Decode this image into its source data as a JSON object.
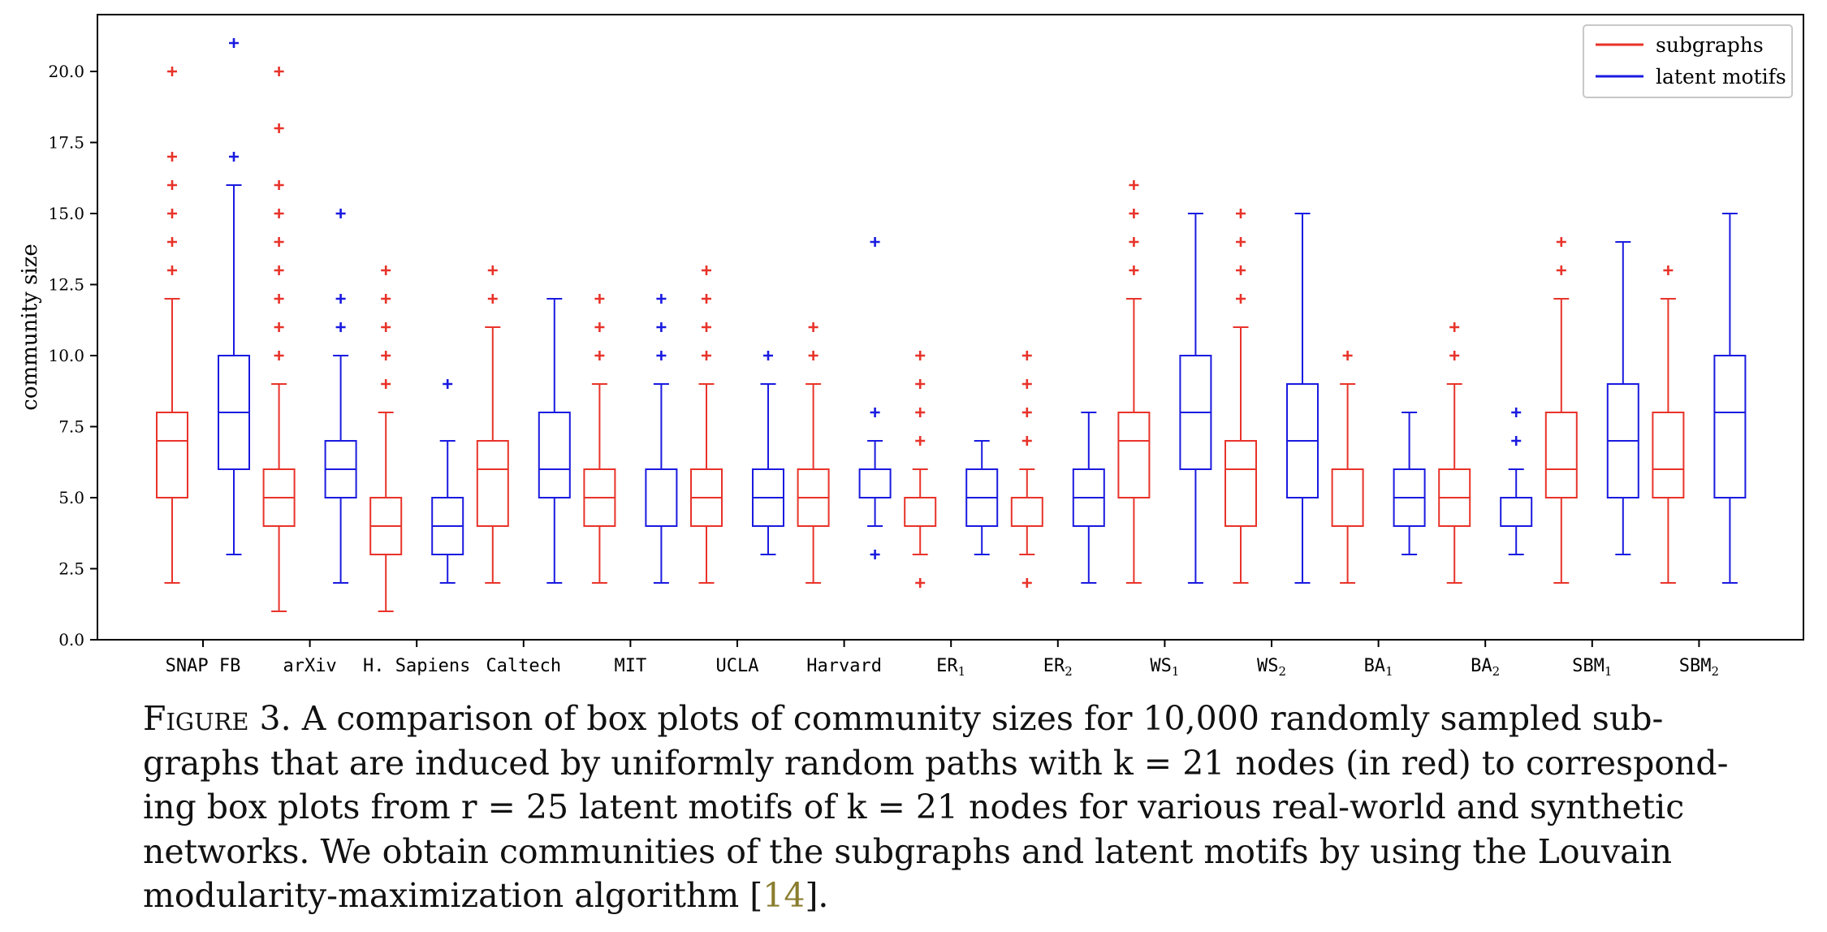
{
  "chart_data": {
    "type": "boxplot",
    "ylabel": "community size",
    "ylim": [
      0.0,
      22.0
    ],
    "yticks": [
      "0.0",
      "2.5",
      "5.0",
      "7.5",
      "10.0",
      "12.5",
      "15.0",
      "17.5",
      "20.0"
    ],
    "categories": [
      "SNAP FB",
      "arXiv",
      "H. Sapiens",
      "Caltech",
      "MIT",
      "UCLA",
      "Harvard",
      "ER",
      "ER",
      "WS",
      "WS",
      "BA",
      "BA",
      "SBM",
      "SBM"
    ],
    "category_subscripts": [
      "",
      "",
      "",
      "",
      "",
      "",
      "",
      "1",
      "2",
      "1",
      "2",
      "1",
      "2",
      "1",
      "2"
    ],
    "legend_position": "top-right",
    "series": [
      {
        "name": "subgraphs",
        "color": "#e8332a",
        "boxes": [
          {
            "whislo": 2,
            "q1": 5,
            "med": 7,
            "q3": 8,
            "whishi": 12,
            "fliers": [
              13,
              14,
              15,
              16,
              17,
              20
            ]
          },
          {
            "whislo": 1,
            "q1": 4,
            "med": 5,
            "q3": 6,
            "whishi": 9,
            "fliers": [
              10,
              11,
              12,
              13,
              14,
              15,
              16,
              18,
              20
            ]
          },
          {
            "whislo": 1,
            "q1": 3,
            "med": 4,
            "q3": 5,
            "whishi": 8,
            "fliers": [
              9,
              10,
              11,
              12,
              13
            ]
          },
          {
            "whislo": 2,
            "q1": 4,
            "med": 6,
            "q3": 7,
            "whishi": 11,
            "fliers": [
              12,
              13
            ]
          },
          {
            "whislo": 2,
            "q1": 4,
            "med": 5,
            "q3": 6,
            "whishi": 9,
            "fliers": [
              10,
              11,
              12
            ]
          },
          {
            "whislo": 2,
            "q1": 4,
            "med": 5,
            "q3": 6,
            "whishi": 9,
            "fliers": [
              10,
              11,
              12,
              13
            ]
          },
          {
            "whislo": 2,
            "q1": 4,
            "med": 5,
            "q3": 6,
            "whishi": 9,
            "fliers": [
              10,
              11
            ]
          },
          {
            "whislo": 3,
            "q1": 4,
            "med": 4,
            "q3": 5,
            "whishi": 6,
            "fliers": [
              2,
              7,
              8,
              9,
              10
            ]
          },
          {
            "whislo": 3,
            "q1": 4,
            "med": 4,
            "q3": 5,
            "whishi": 6,
            "fliers": [
              2,
              7,
              8,
              9,
              10
            ]
          },
          {
            "whislo": 2,
            "q1": 5,
            "med": 7,
            "q3": 8,
            "whishi": 12,
            "fliers": [
              13,
              14,
              15,
              16
            ]
          },
          {
            "whislo": 2,
            "q1": 4,
            "med": 6,
            "q3": 7,
            "whishi": 11,
            "fliers": [
              12,
              13,
              14,
              15
            ]
          },
          {
            "whislo": 2,
            "q1": 4,
            "med": 4,
            "q3": 6,
            "whishi": 9,
            "fliers": [
              10
            ]
          },
          {
            "whislo": 2,
            "q1": 4,
            "med": 5,
            "q3": 6,
            "whishi": 9,
            "fliers": [
              10,
              11
            ]
          },
          {
            "whislo": 2,
            "q1": 5,
            "med": 6,
            "q3": 8,
            "whishi": 12,
            "fliers": [
              13,
              14
            ]
          },
          {
            "whislo": 2,
            "q1": 5,
            "med": 6,
            "q3": 8,
            "whishi": 12,
            "fliers": [
              13
            ]
          }
        ]
      },
      {
        "name": "latent motifs",
        "color": "#1a1ae0",
        "boxes": [
          {
            "whislo": 3,
            "q1": 6,
            "med": 8,
            "q3": 10,
            "whishi": 16,
            "fliers": [
              17,
              21
            ]
          },
          {
            "whislo": 2,
            "q1": 5,
            "med": 6,
            "q3": 7,
            "whishi": 10,
            "fliers": [
              11,
              12,
              15
            ]
          },
          {
            "whislo": 2,
            "q1": 3,
            "med": 4,
            "q3": 5,
            "whishi": 7,
            "fliers": [
              9
            ]
          },
          {
            "whislo": 2,
            "q1": 5,
            "med": 6,
            "q3": 8,
            "whishi": 12,
            "fliers": []
          },
          {
            "whislo": 2,
            "q1": 4,
            "med": 6,
            "q3": 6,
            "whishi": 9,
            "fliers": [
              10,
              11,
              12
            ]
          },
          {
            "whislo": 3,
            "q1": 4,
            "med": 5,
            "q3": 6,
            "whishi": 9,
            "fliers": [
              10
            ]
          },
          {
            "whislo": 4,
            "q1": 5,
            "med": 5,
            "q3": 6,
            "whishi": 7,
            "fliers": [
              3,
              8,
              14
            ]
          },
          {
            "whislo": 3,
            "q1": 4,
            "med": 5,
            "q3": 6,
            "whishi": 7,
            "fliers": []
          },
          {
            "whislo": 2,
            "q1": 4,
            "med": 5,
            "q3": 6,
            "whishi": 8,
            "fliers": []
          },
          {
            "whislo": 2,
            "q1": 6,
            "med": 8,
            "q3": 10,
            "whishi": 15,
            "fliers": []
          },
          {
            "whislo": 2,
            "q1": 5,
            "med": 7,
            "q3": 9,
            "whishi": 15,
            "fliers": []
          },
          {
            "whislo": 3,
            "q1": 4,
            "med": 5,
            "q3": 6,
            "whishi": 8,
            "fliers": []
          },
          {
            "whislo": 3,
            "q1": 4,
            "med": 4,
            "q3": 5,
            "whishi": 6,
            "fliers": [
              7,
              8
            ]
          },
          {
            "whislo": 3,
            "q1": 5,
            "med": 7,
            "q3": 9,
            "whishi": 14,
            "fliers": []
          },
          {
            "whislo": 2,
            "q1": 5,
            "med": 8,
            "q3": 10,
            "whishi": 15,
            "fliers": []
          }
        ]
      }
    ]
  },
  "caption": {
    "label": "Figure 3.",
    "line1": " A comparison of box plots of community sizes for 10,000 randomly sampled sub-",
    "line2": "graphs that are induced by uniformly random paths with k = 21 nodes (in red) to correspond-",
    "line3": "ing box plots from r = 25 latent motifs of k = 21 nodes for various real-world and synthetic",
    "line4": "networks.  We obtain communities of the subgraphs and latent motifs by using the Louvain",
    "line5a": "modularity-maximization algorithm [",
    "citation": "14",
    "line5b": "]."
  }
}
